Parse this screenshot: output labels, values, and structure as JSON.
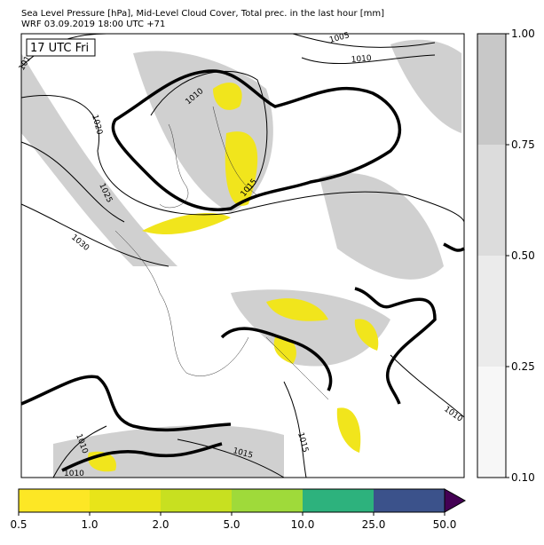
{
  "header": {
    "title": "Sea Level Pressure [hPa], Mid-Level Cloud Cover, Total prec. in the last hour [mm]",
    "subtitle": "WRF 03.09.2019 18:00 UTC +71"
  },
  "map": {
    "time_label": "17 UTC Fri",
    "contour_labels": [
      "101",
      "1005",
      "1010",
      "1010",
      "1020",
      "1025",
      "1030",
      "1015",
      "1010",
      "1015",
      "1015",
      "1010",
      "1010"
    ]
  },
  "cloud_colorbar": {
    "ticks": [
      {
        "value": 1,
        "label": "1.00"
      },
      {
        "value": 0.75,
        "label": "0.75"
      },
      {
        "value": 0.5,
        "label": "0.50"
      },
      {
        "value": 0.25,
        "label": "0.25"
      },
      {
        "value": 0.1,
        "label": "0.10"
      }
    ],
    "colors": [
      "#c8c8c8",
      "#dcdcdc",
      "#ebebeb",
      "#f7f7f7"
    ]
  },
  "precip_colorbar": {
    "ticks": [
      0.5,
      {
        "value": 1,
        "label": "1.0"
      },
      {
        "value": 2,
        "label": "2.0"
      },
      {
        "value": 5,
        "label": "5.0"
      },
      {
        "value": 10,
        "label": "10.0"
      },
      {
        "value": 25,
        "label": "25.0"
      },
      {
        "value": 50,
        "label": "50.0"
      }
    ],
    "colors": [
      "#fde725",
      "#e8e419",
      "#c8e020",
      "#9fda3a",
      "#2db27d",
      "#3b528b",
      "#440154"
    ]
  }
}
